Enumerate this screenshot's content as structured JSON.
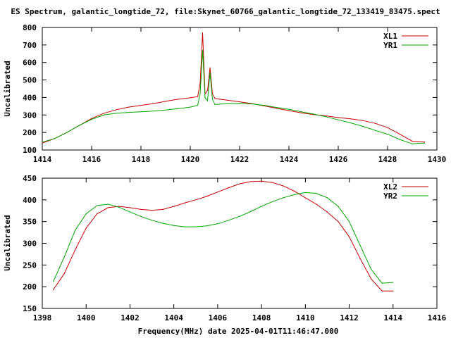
{
  "title": "ES Spectrum, galantic_longtide_72, file:Skynet_60766_galantic_longtide_72_133419_83475.spect",
  "xlabel": "Frequency(MHz) date 2025-04-01T11:46:47.000",
  "colors": {
    "red": "#cc0000",
    "green": "#00aa00"
  },
  "chart_data": [
    {
      "type": "line",
      "ylabel": "Uncalibrated",
      "xlim": [
        1414,
        1430
      ],
      "ylim": [
        100,
        800
      ],
      "xticks": [
        1414,
        1416,
        1418,
        1420,
        1422,
        1424,
        1426,
        1428,
        1430
      ],
      "yticks": [
        100,
        200,
        300,
        400,
        500,
        600,
        700,
        800
      ],
      "legend": "top-right",
      "series": [
        {
          "name": "XL1",
          "color": "#cc0000",
          "x": [
            1414.0,
            1414.5,
            1415.0,
            1415.5,
            1416.0,
            1416.5,
            1417.0,
            1417.5,
            1418.0,
            1418.5,
            1419.0,
            1419.5,
            1420.0,
            1420.3,
            1420.4,
            1420.5,
            1420.6,
            1420.7,
            1420.8,
            1420.9,
            1421.0,
            1421.2,
            1421.5,
            1422.0,
            1422.5,
            1423.0,
            1423.5,
            1424.0,
            1424.5,
            1425.0,
            1425.5,
            1426.0,
            1426.5,
            1427.0,
            1427.5,
            1428.0,
            1428.5,
            1429.0,
            1429.5
          ],
          "y": [
            140,
            165,
            200,
            240,
            280,
            310,
            330,
            345,
            355,
            365,
            378,
            390,
            398,
            405,
            480,
            770,
            420,
            440,
            570,
            420,
            395,
            390,
            385,
            375,
            365,
            352,
            338,
            325,
            312,
            302,
            295,
            285,
            278,
            268,
            252,
            228,
            190,
            150,
            145
          ]
        },
        {
          "name": "YR1",
          "color": "#00aa00",
          "x": [
            1414.0,
            1414.5,
            1415.0,
            1415.5,
            1416.0,
            1416.5,
            1417.0,
            1417.5,
            1418.0,
            1418.5,
            1419.0,
            1419.5,
            1420.0,
            1420.3,
            1420.4,
            1420.5,
            1420.6,
            1420.7,
            1420.8,
            1420.9,
            1421.0,
            1421.2,
            1421.5,
            1422.0,
            1422.5,
            1423.0,
            1423.5,
            1424.0,
            1424.5,
            1425.0,
            1425.5,
            1426.0,
            1426.5,
            1427.0,
            1427.5,
            1428.0,
            1428.5,
            1429.0,
            1429.5
          ],
          "y": [
            145,
            165,
            200,
            240,
            275,
            300,
            310,
            315,
            318,
            322,
            328,
            336,
            345,
            355,
            420,
            670,
            400,
            380,
            540,
            390,
            360,
            362,
            365,
            366,
            363,
            355,
            343,
            332,
            318,
            305,
            290,
            272,
            255,
            235,
            212,
            190,
            160,
            135,
            140
          ]
        }
      ]
    },
    {
      "type": "line",
      "ylabel": "Uncalibrated",
      "xlim": [
        1398,
        1416
      ],
      "ylim": [
        150,
        450
      ],
      "xticks": [
        1398,
        1400,
        1402,
        1404,
        1406,
        1408,
        1410,
        1412,
        1414,
        1416
      ],
      "yticks": [
        150,
        200,
        250,
        300,
        350,
        400,
        450
      ],
      "legend": "top-right",
      "series": [
        {
          "name": "XL2",
          "color": "#cc0000",
          "x": [
            1398.5,
            1399.0,
            1399.5,
            1400.0,
            1400.5,
            1401.0,
            1401.5,
            1402.0,
            1402.5,
            1403.0,
            1403.5,
            1404.0,
            1404.5,
            1405.0,
            1405.5,
            1406.0,
            1406.5,
            1407.0,
            1407.5,
            1408.0,
            1408.5,
            1409.0,
            1409.5,
            1410.0,
            1410.5,
            1411.0,
            1411.5,
            1412.0,
            1412.5,
            1413.0,
            1413.5,
            1414.0
          ],
          "y": [
            193,
            230,
            285,
            335,
            368,
            382,
            385,
            382,
            378,
            376,
            378,
            385,
            393,
            400,
            408,
            418,
            428,
            437,
            442,
            443,
            440,
            432,
            420,
            405,
            390,
            372,
            350,
            315,
            265,
            218,
            190,
            190
          ]
        },
        {
          "name": "YR2",
          "color": "#00aa00",
          "x": [
            1398.5,
            1399.0,
            1399.5,
            1400.0,
            1400.5,
            1401.0,
            1401.5,
            1402.0,
            1402.5,
            1403.0,
            1403.5,
            1404.0,
            1404.5,
            1405.0,
            1405.5,
            1406.0,
            1406.5,
            1407.0,
            1407.5,
            1408.0,
            1408.5,
            1409.0,
            1409.5,
            1410.0,
            1410.5,
            1411.0,
            1411.5,
            1412.0,
            1412.5,
            1413.0,
            1413.5,
            1414.0
          ],
          "y": [
            212,
            268,
            330,
            368,
            387,
            390,
            383,
            372,
            362,
            353,
            346,
            341,
            338,
            338,
            340,
            345,
            353,
            362,
            373,
            385,
            396,
            405,
            412,
            417,
            415,
            405,
            385,
            350,
            295,
            240,
            208,
            210
          ]
        }
      ]
    }
  ]
}
